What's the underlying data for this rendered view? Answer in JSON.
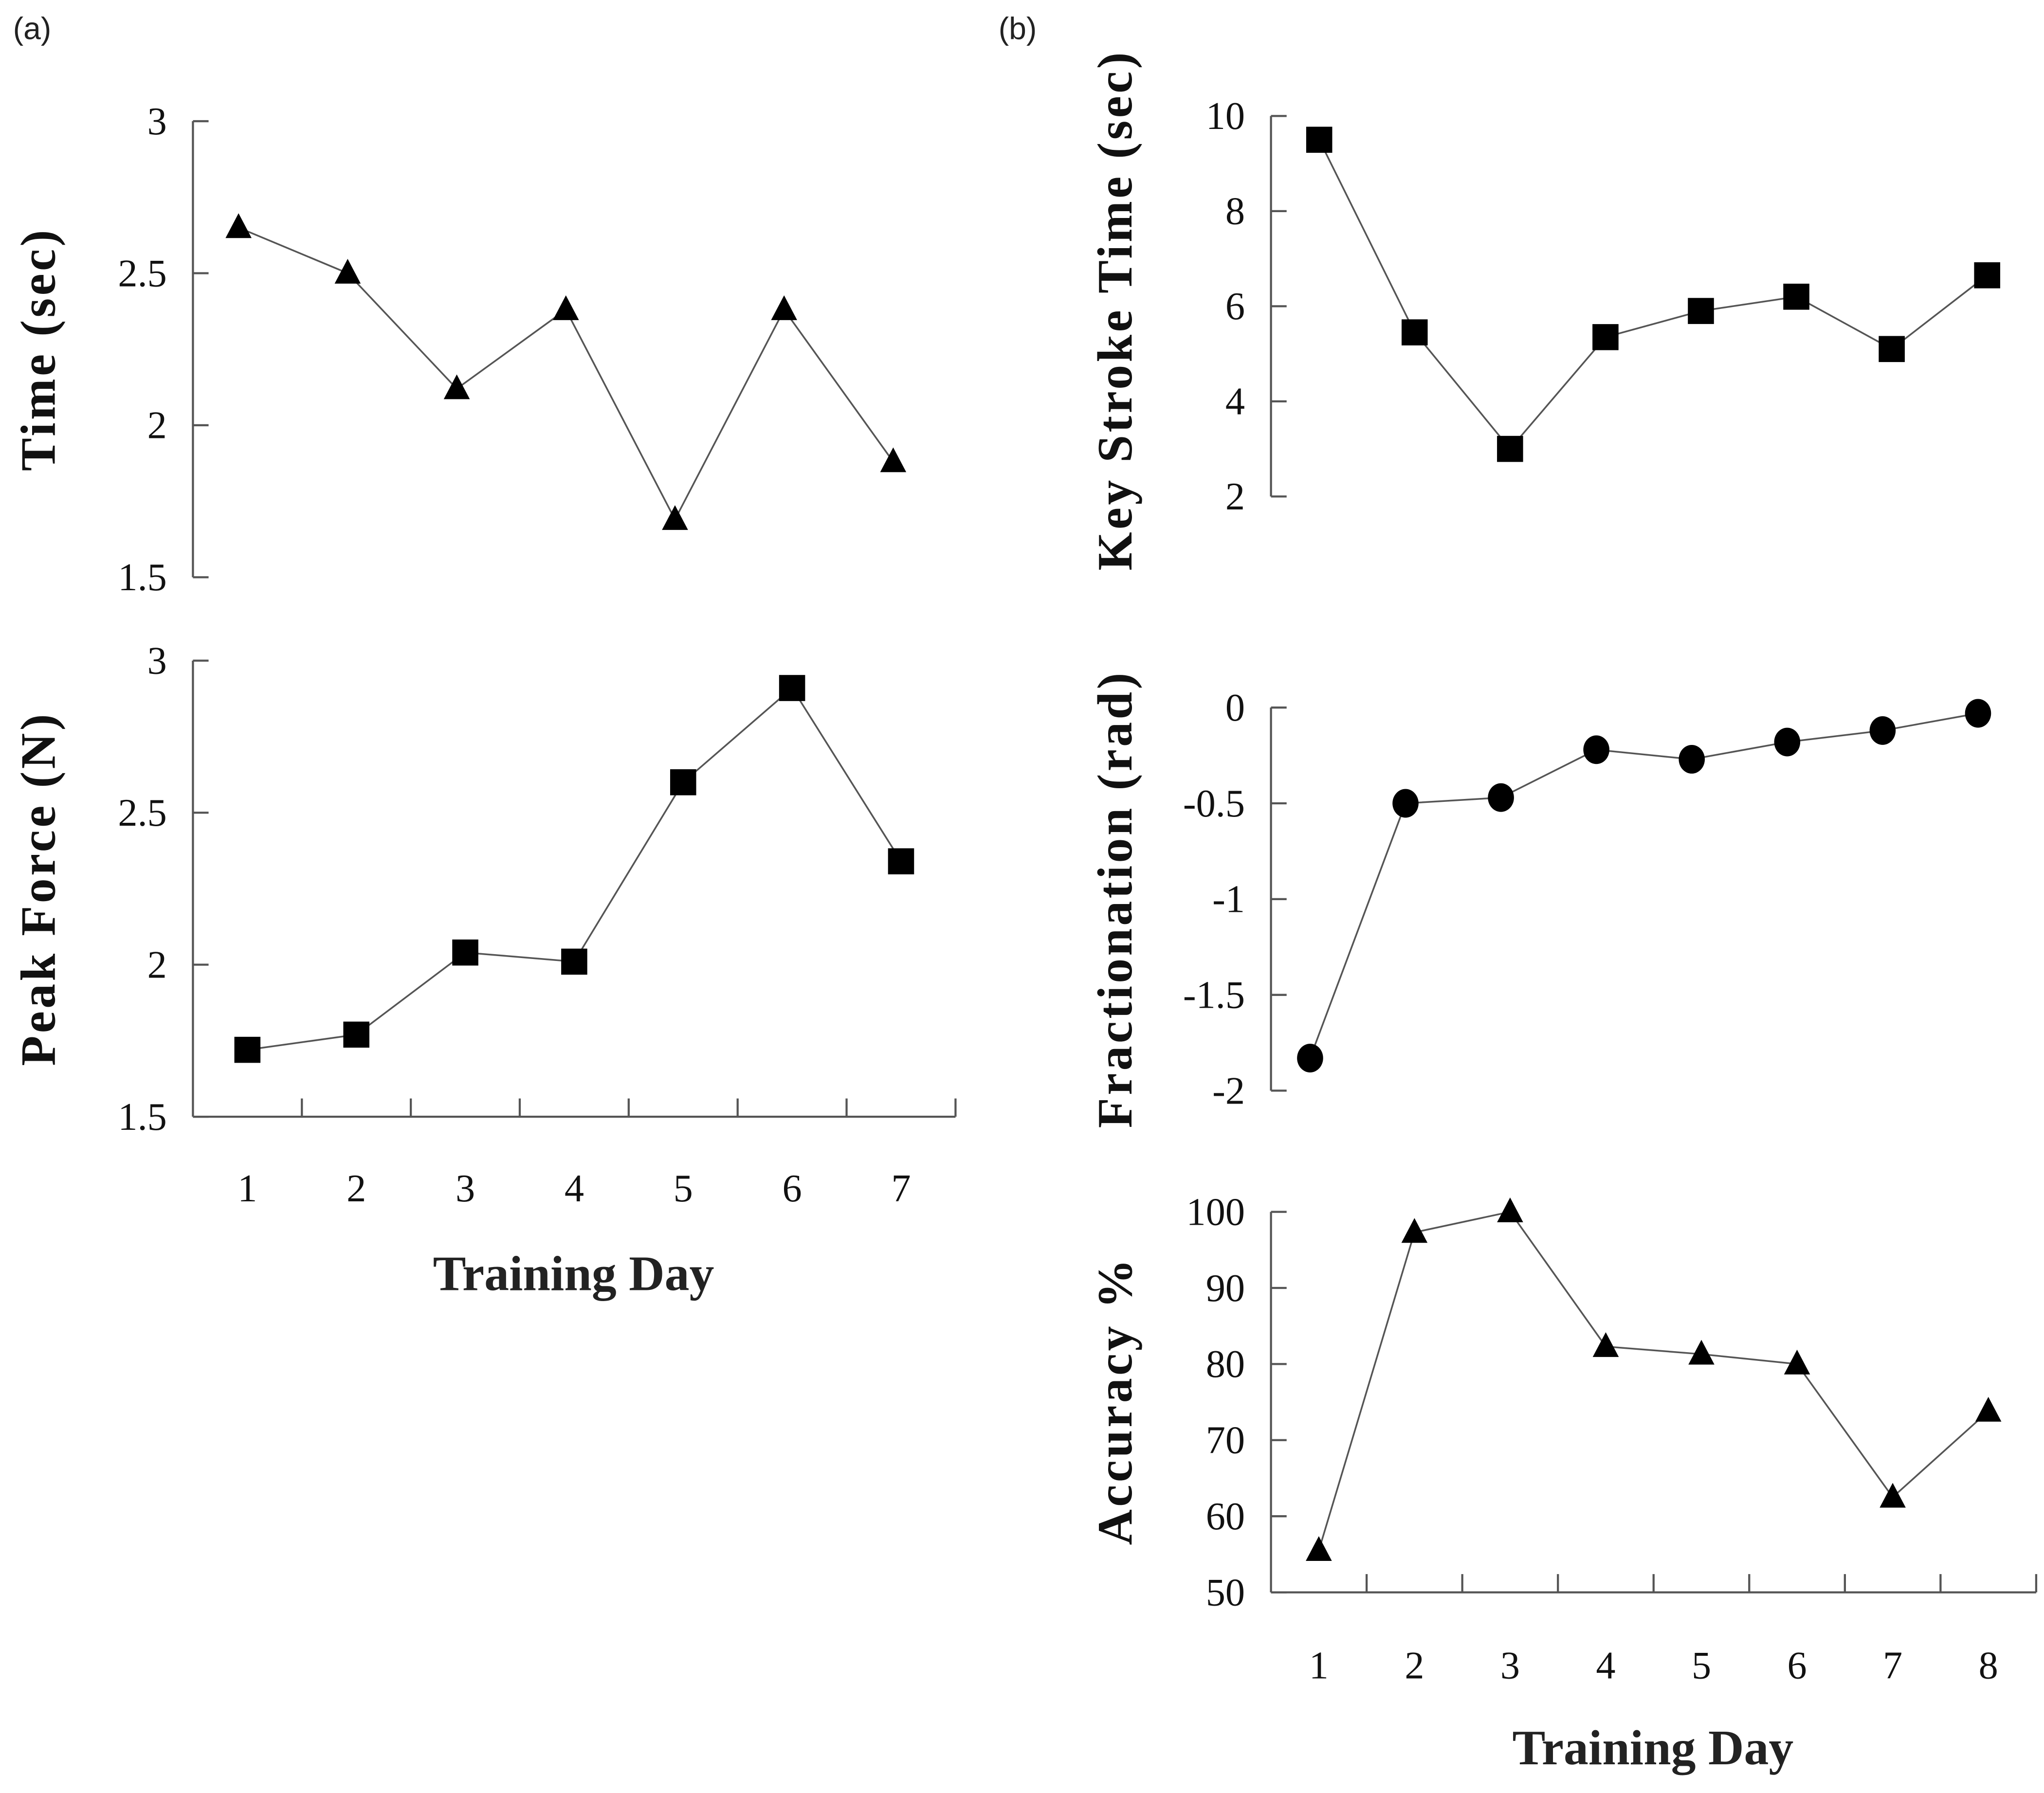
{
  "chart_data": [
    {
      "panel": "(a)",
      "type": "line",
      "ylabel": "Time (sec)",
      "xlabel": "",
      "marker": "triangle",
      "x": [
        1,
        2,
        3,
        4,
        5,
        6,
        7
      ],
      "values": [
        2.65,
        2.5,
        2.12,
        2.38,
        1.69,
        2.38,
        1.88
      ],
      "ylim": [
        1.5,
        3
      ],
      "yticks": [
        "3",
        "2.5",
        "2",
        "1.5"
      ],
      "ytick_values": [
        3,
        2.5,
        2,
        1.5
      ],
      "xticks": []
    },
    {
      "panel": "",
      "type": "line",
      "ylabel": "Peak Force (N)",
      "xlabel": "Training Day",
      "marker": "square",
      "x": [
        1,
        2,
        3,
        4,
        5,
        6,
        7
      ],
      "values": [
        1.72,
        1.77,
        2.04,
        2.01,
        2.6,
        2.91,
        2.34
      ],
      "ylim": [
        1.5,
        3
      ],
      "yticks": [
        "3",
        "2.5",
        "2",
        "1.5"
      ],
      "ytick_values": [
        3,
        2.5,
        2,
        1.5
      ],
      "xticks": [
        "1",
        "2",
        "3",
        "4",
        "5",
        "6",
        "7"
      ]
    },
    {
      "panel": "(b)",
      "type": "line",
      "ylabel": "Key Stroke Time (sec)",
      "xlabel": "",
      "marker": "square",
      "x": [
        1,
        2,
        3,
        4,
        5,
        6,
        7,
        8
      ],
      "values": [
        9.5,
        5.45,
        3.0,
        5.35,
        5.9,
        6.2,
        5.1,
        6.65
      ],
      "ylim": [
        2,
        10
      ],
      "yticks": [
        "10",
        "8",
        "6",
        "4",
        "2"
      ],
      "ytick_values": [
        10,
        8,
        6,
        4,
        2
      ],
      "xticks": []
    },
    {
      "panel": "",
      "type": "line",
      "ylabel": "Fractionation (rad)",
      "xlabel": "",
      "marker": "circle",
      "x": [
        1,
        2,
        3,
        4,
        5,
        6,
        7,
        8
      ],
      "values": [
        -1.83,
        -0.5,
        -0.47,
        -0.22,
        -0.27,
        -0.18,
        -0.12,
        -0.03
      ],
      "ylim": [
        -2,
        0
      ],
      "yticks": [
        "0",
        "-0.5",
        "-1",
        "-1.5",
        "-2"
      ],
      "ytick_values": [
        0,
        -0.5,
        -1,
        -1.5,
        -2
      ],
      "xticks": []
    },
    {
      "panel": "",
      "type": "line",
      "ylabel": "Accuracy %",
      "xlabel": "Training Day",
      "marker": "triangle",
      "x": [
        1,
        2,
        3,
        4,
        5,
        6,
        7,
        8
      ],
      "values": [
        55.5,
        97.3,
        100,
        82.3,
        81.3,
        80,
        62.5,
        73.8
      ],
      "ylim": [
        50,
        100
      ],
      "yticks": [
        "100",
        "90",
        "80",
        "70",
        "60",
        "50"
      ],
      "ytick_values": [
        100,
        90,
        80,
        70,
        60,
        50
      ],
      "xticks": [
        "1",
        "2",
        "3",
        "4",
        "5",
        "6",
        "7",
        "8"
      ]
    }
  ]
}
